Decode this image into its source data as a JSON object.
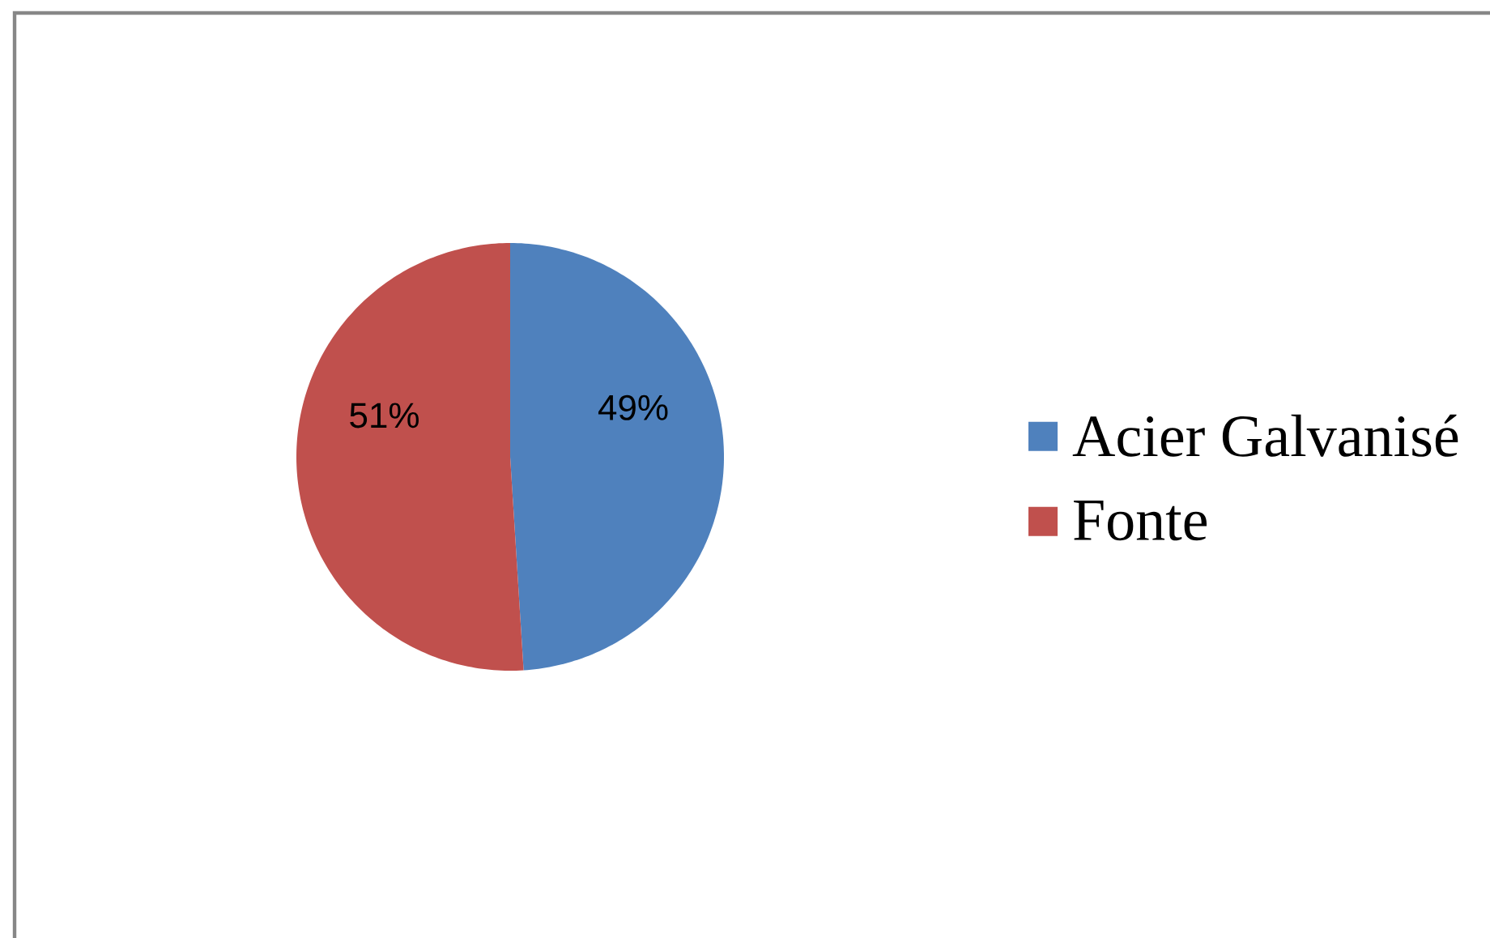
{
  "chart_data": {
    "type": "pie",
    "categories": [
      "Acier Galvanisé",
      "Fonte"
    ],
    "values": [
      49,
      51
    ],
    "colors": [
      "#4f81bd",
      "#c0504d"
    ],
    "value_labels": [
      "49%",
      "51%"
    ],
    "legend": "right"
  }
}
